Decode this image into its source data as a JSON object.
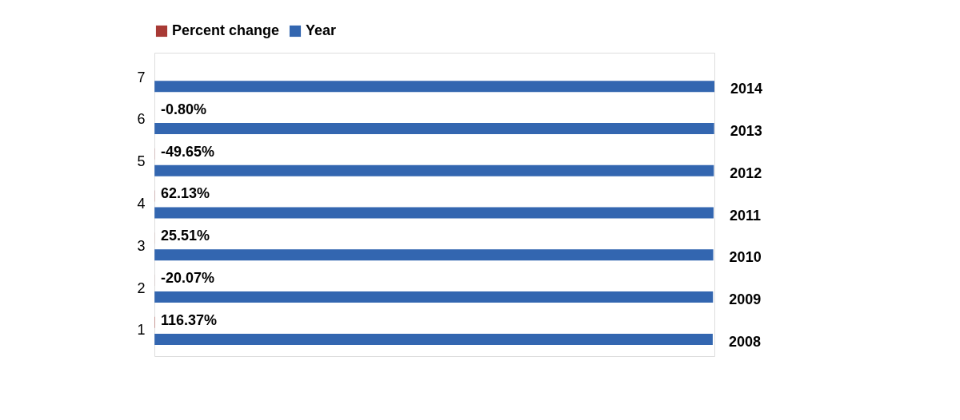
{
  "chart_data": {
    "type": "bar",
    "orientation": "horizontal",
    "categories": [
      "7",
      "6",
      "5",
      "4",
      "3",
      "2",
      "1"
    ],
    "series": [
      {
        "name": "Percent change",
        "color": "#a83a35",
        "values": [
          null,
          -0.008,
          -0.4965,
          0.6213,
          0.2551,
          -0.2007,
          1.1637
        ],
        "value_labels": [
          null,
          "-0.80%",
          "-49.65%",
          "62.13%",
          "25.51%",
          "-20.07%",
          "116.37%"
        ]
      },
      {
        "name": "Year",
        "color": "#3366b0",
        "values": [
          2014,
          2013,
          2012,
          2011,
          2010,
          2009,
          2008
        ],
        "value_labels": [
          "2014",
          "2013",
          "2012",
          "2011",
          "2010",
          "2009",
          "2008"
        ]
      }
    ],
    "legend": "top",
    "grid": false,
    "tick_labels": "y"
  }
}
